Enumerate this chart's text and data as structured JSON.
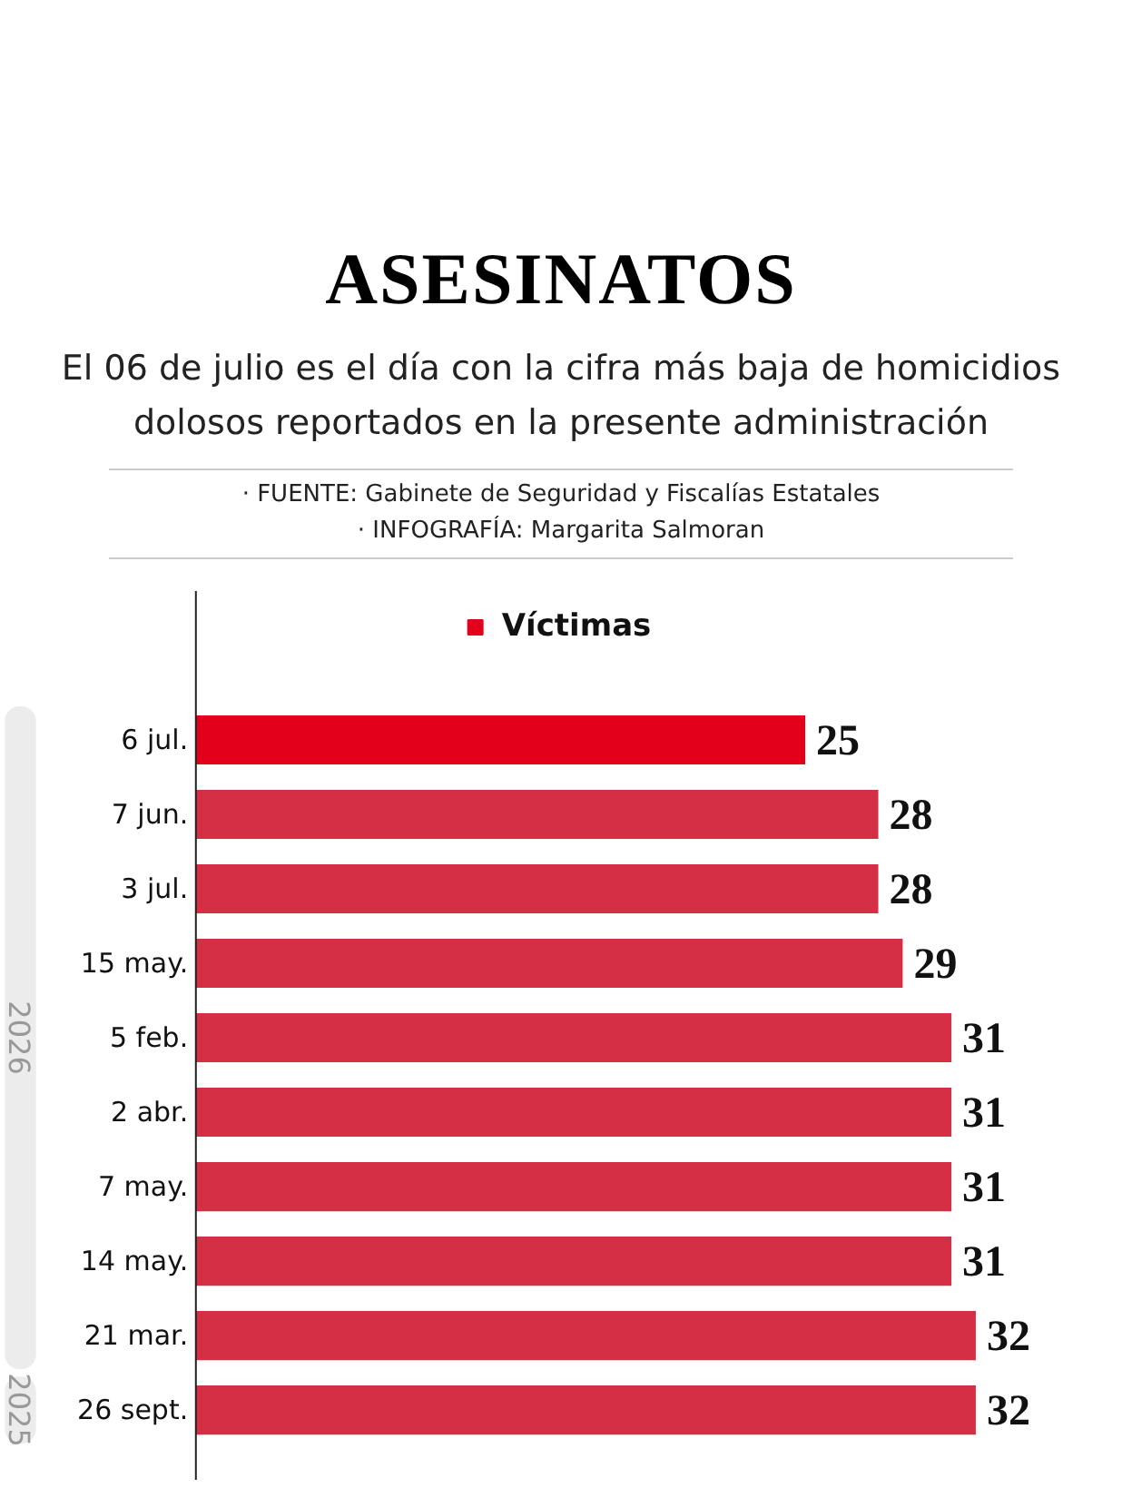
{
  "chart_data": {
    "type": "bar",
    "orientation": "horizontal",
    "title": "ASESINATOS",
    "subtitle": "El 06 de julio es el día con la cifra más baja de homicidios dolosos reportados en la presente administración",
    "annotations": [
      "· FUENTE: Gabinete de Seguridad y Fiscalías Estatales",
      "· INFOGRAFÍA: Margarita Salmoran",
      "2026",
      "2025"
    ],
    "categories": [
      "6 jul.",
      "7 jun.",
      "3 jul.",
      "15 may.",
      "5 feb.",
      "2 abr.",
      "7 may.",
      "14 may.",
      "21 mar.",
      "26 sept."
    ],
    "series": [
      {
        "name": "Víctimas",
        "color": "#e3001b",
        "values": [
          25,
          28,
          28,
          29,
          31,
          31,
          31,
          31,
          32,
          32
        ],
        "colors": [
          "#e3001b",
          "#d42f45",
          "#d42f45",
          "#d42f45",
          "#d42f45",
          "#d42f45",
          "#d42f45",
          "#d42f45",
          "#d42f45",
          "#d42f45"
        ]
      }
    ],
    "data_labels": true,
    "legend": "top"
  }
}
